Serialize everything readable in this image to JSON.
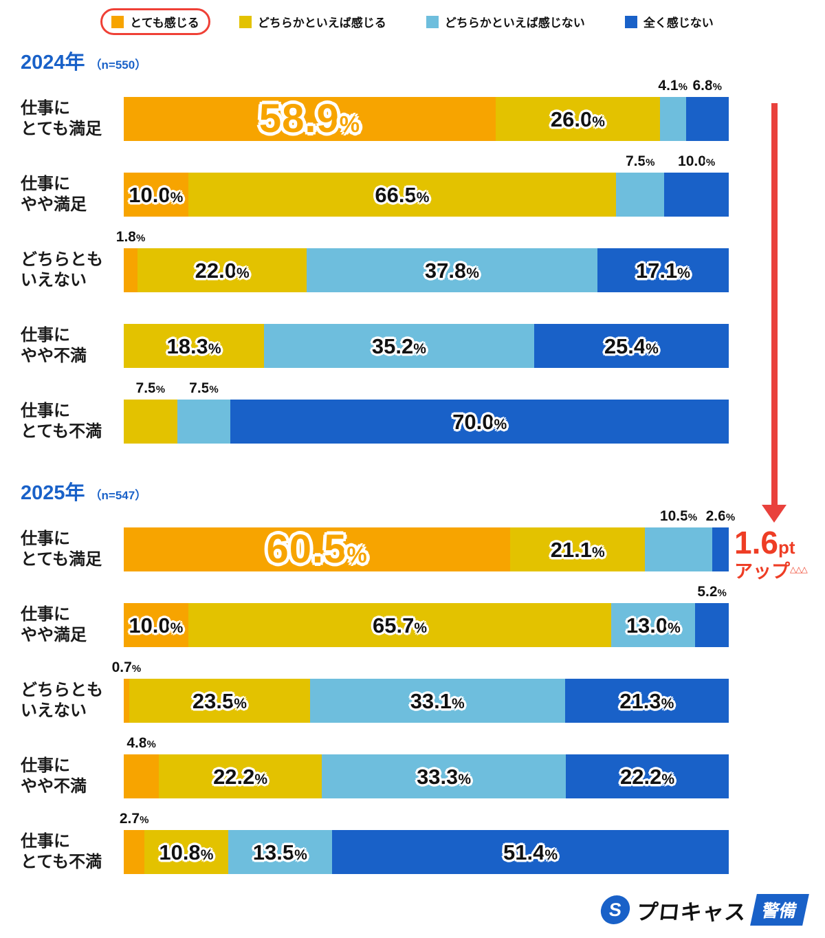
{
  "legend": {
    "items": [
      {
        "label": "とても感じる",
        "highlighted": true
      },
      {
        "label": "どちらかといえば感じる",
        "highlighted": false
      },
      {
        "label": "どちらかといえば感じない",
        "highlighted": false
      },
      {
        "label": "全く感じない",
        "highlighted": false
      }
    ]
  },
  "annotation": {
    "value": "1.6",
    "unit": "pt",
    "label": "アップ",
    "marks": "△△△"
  },
  "logo": {
    "mark": "S",
    "brand": "プロキャス",
    "badge": "警備"
  },
  "chart_data": {
    "type": "bar",
    "stacked": true,
    "orientation": "horizontal",
    "unit": "%",
    "series": [
      "とても感じる",
      "どちらかといえば感じる",
      "どちらかといえば感じない",
      "全く感じない"
    ],
    "colors": [
      "#F7A400",
      "#E3C200",
      "#6EBEDD",
      "#1961C8"
    ],
    "groups": [
      {
        "title": "2024年",
        "n": "（n=550）",
        "rows": [
          {
            "category": "仕事に\nとても満足",
            "values": [
              58.9,
              26.0,
              4.1,
              6.8
            ],
            "label_pos": [
              "in-big",
              "in",
              "above",
              "above"
            ]
          },
          {
            "category": "仕事に\nやや満足",
            "values": [
              10.0,
              66.5,
              7.5,
              10.0
            ],
            "label_pos": [
              "in",
              "in",
              "above",
              "above"
            ]
          },
          {
            "category": "どちらとも\nいえない",
            "values": [
              1.8,
              22.0,
              37.8,
              17.1
            ],
            "label_pos": [
              "above",
              "in",
              "in",
              "in"
            ]
          },
          {
            "category": "仕事に\nやや不満",
            "values": [
              0,
              18.3,
              35.2,
              25.4
            ],
            "label_pos": [
              "none",
              "in",
              "in",
              "in"
            ]
          },
          {
            "category": "仕事に\nとても不満",
            "values": [
              0,
              7.5,
              7.5,
              70.0
            ],
            "label_pos": [
              "none",
              "above",
              "above",
              "in"
            ]
          }
        ]
      },
      {
        "title": "2025年",
        "n": "（n=547）",
        "rows": [
          {
            "category": "仕事に\nとても満足",
            "values": [
              60.5,
              21.1,
              10.5,
              2.6
            ],
            "label_pos": [
              "in-big",
              "in",
              "above",
              "above"
            ]
          },
          {
            "category": "仕事に\nやや満足",
            "values": [
              10.0,
              65.7,
              13.0,
              5.2
            ],
            "label_pos": [
              "in",
              "in",
              "in",
              "above"
            ]
          },
          {
            "category": "どちらとも\nいえない",
            "values": [
              0.7,
              23.5,
              33.1,
              21.3
            ],
            "label_pos": [
              "above",
              "in",
              "in",
              "in"
            ]
          },
          {
            "category": "仕事に\nやや不満",
            "values": [
              4.8,
              22.2,
              33.3,
              22.2
            ],
            "label_pos": [
              "above",
              "in",
              "in",
              "in"
            ]
          },
          {
            "category": "仕事に\nとても不満",
            "values": [
              2.7,
              10.8,
              13.5,
              51.4
            ],
            "label_pos": [
              "above",
              "in",
              "in",
              "in"
            ]
          }
        ]
      }
    ]
  }
}
